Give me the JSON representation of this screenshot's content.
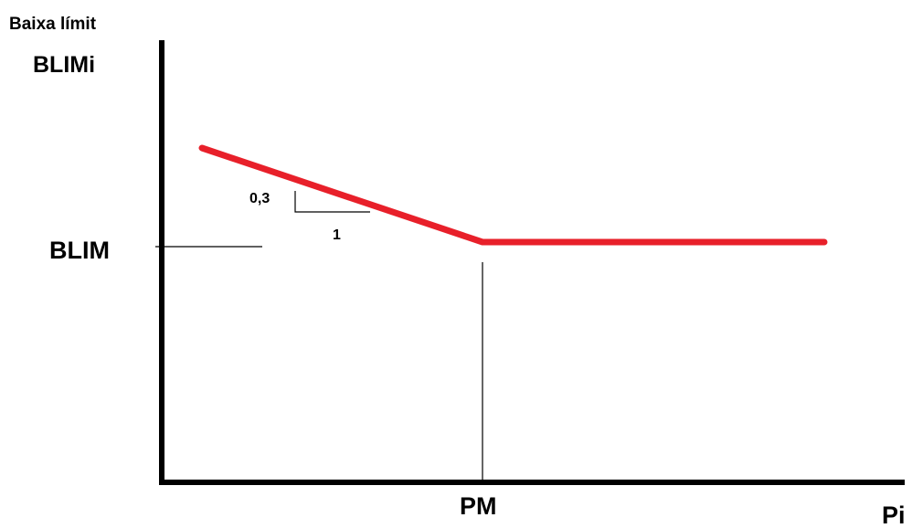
{
  "chart_data": {
    "type": "line",
    "y_title_line1": "Baixa límit",
    "y_title_line2": "BLIMi",
    "x_title": "Pi",
    "series": [
      {
        "points": [
          {
            "x": "",
            "y": ""
          },
          {
            "x": "PM",
            "y": "BLIM"
          },
          {
            "x": "",
            "y": "BLIM"
          }
        ]
      }
    ],
    "reference_labels": {
      "y": "BLIM",
      "x": "PM"
    },
    "slope_annotation": {
      "rise": "0,3",
      "run": "1"
    },
    "line_color": "#e8202a",
    "axis_color": "#000000",
    "grid": false,
    "legend": false
  }
}
